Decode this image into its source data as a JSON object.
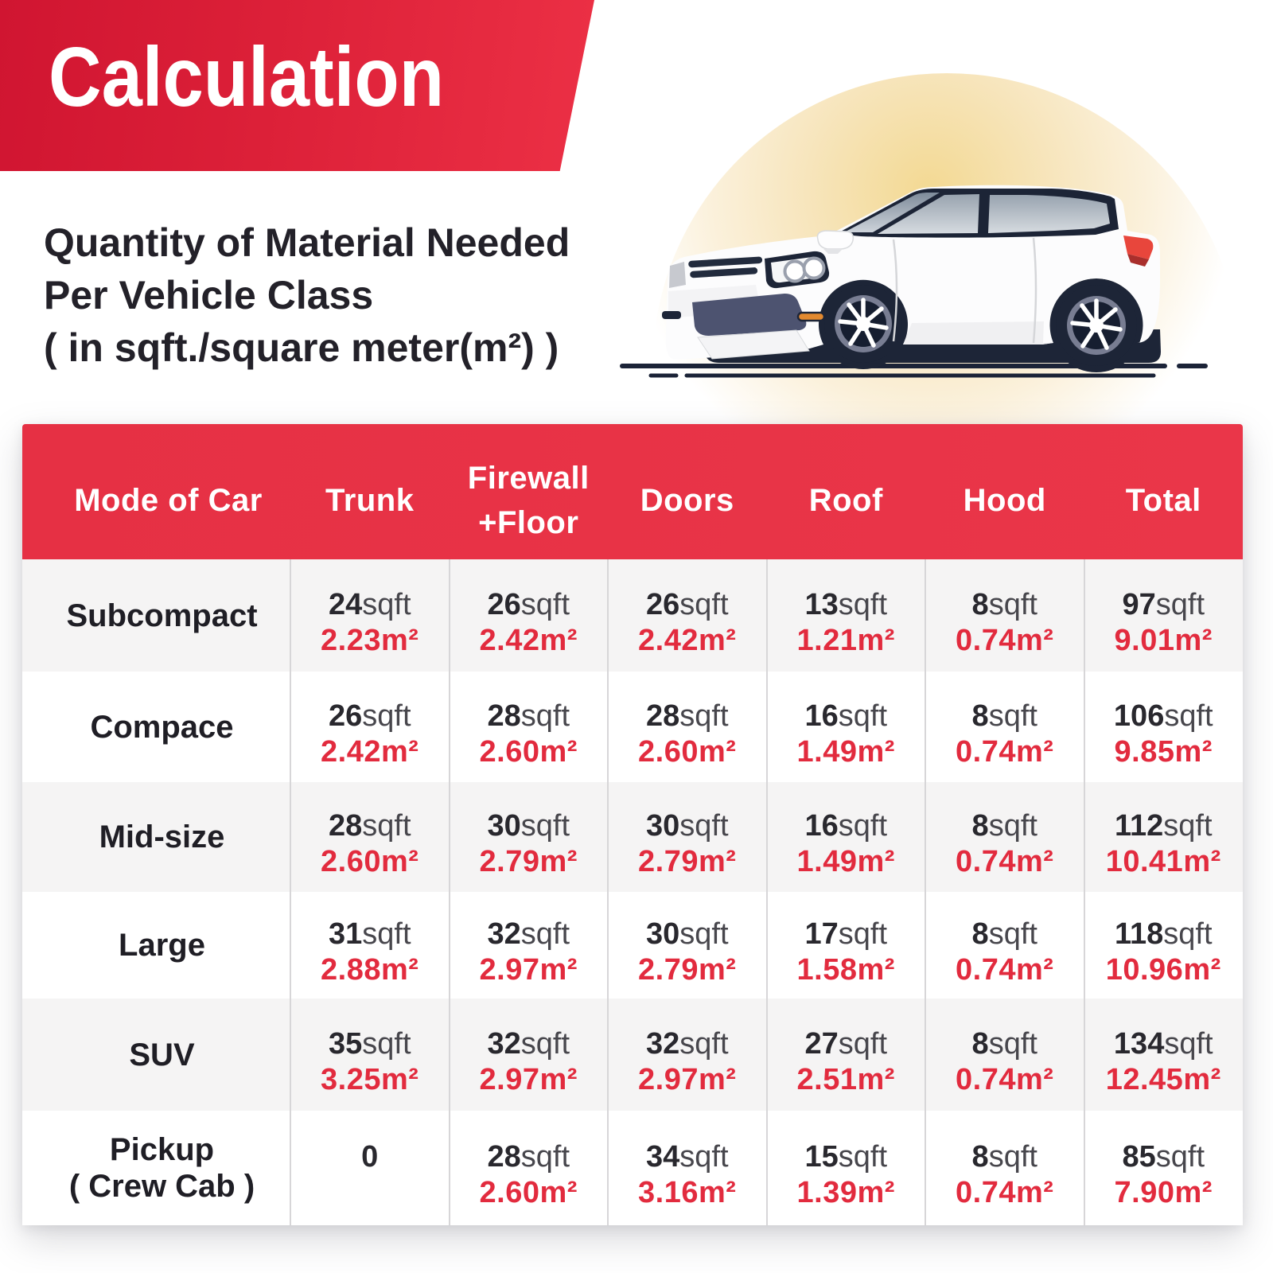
{
  "header": {
    "title": "Calculation",
    "subtitle_lines": [
      "Quantity of Material Needed",
      "Per Vehicle Class",
      "( in sqft./square meter(m²) )"
    ]
  },
  "colors": {
    "banner_red_left": "#d01531",
    "banner_red_right": "#ec3045",
    "table_header_red": "#e93548",
    "value_red": "#e22b3e",
    "row_alt_gray": "#f5f4f4",
    "text_dark": "#232129",
    "ground_navy": "#1b2337",
    "sun_yellow": "#f6dfa6"
  },
  "illustration": {
    "name": "white-hatchback-car-side-view",
    "background": "sun-circle"
  },
  "table": {
    "columns": [
      "Mode of Car",
      "Trunk",
      "Firewall\n+Floor",
      "Doors",
      "Roof",
      "Hood",
      "Total"
    ],
    "unit_sqft": "sqft",
    "unit_m2": "m²",
    "rows": [
      {
        "label": "Subcompact",
        "cells": [
          {
            "sqft": "24",
            "m2": "2.23"
          },
          {
            "sqft": "26",
            "m2": "2.42"
          },
          {
            "sqft": "26",
            "m2": "2.42"
          },
          {
            "sqft": "13",
            "m2": "1.21"
          },
          {
            "sqft": "8",
            "m2": "0.74"
          },
          {
            "sqft": "97",
            "m2": "9.01"
          }
        ]
      },
      {
        "label": "Compace",
        "cells": [
          {
            "sqft": "26",
            "m2": "2.42"
          },
          {
            "sqft": "28",
            "m2": "2.60"
          },
          {
            "sqft": "28",
            "m2": "2.60"
          },
          {
            "sqft": "16",
            "m2": "1.49"
          },
          {
            "sqft": "8",
            "m2": "0.74"
          },
          {
            "sqft": "106",
            "m2": "9.85"
          }
        ]
      },
      {
        "label": "Mid-size",
        "cells": [
          {
            "sqft": "28",
            "m2": "2.60"
          },
          {
            "sqft": "30",
            "m2": "2.79"
          },
          {
            "sqft": "30",
            "m2": "2.79"
          },
          {
            "sqft": "16",
            "m2": "1.49"
          },
          {
            "sqft": "8",
            "m2": "0.74"
          },
          {
            "sqft": "112",
            "m2": "10.41"
          }
        ]
      },
      {
        "label": "Large",
        "cells": [
          {
            "sqft": "31",
            "m2": "2.88"
          },
          {
            "sqft": "32",
            "m2": "2.97"
          },
          {
            "sqft": "30",
            "m2": "2.79"
          },
          {
            "sqft": "17",
            "m2": "1.58"
          },
          {
            "sqft": "8",
            "m2": "0.74"
          },
          {
            "sqft": "118",
            "m2": "10.96"
          }
        ]
      },
      {
        "label": "SUV",
        "cells": [
          {
            "sqft": "35",
            "m2": "3.25"
          },
          {
            "sqft": "32",
            "m2": "2.97"
          },
          {
            "sqft": "32",
            "m2": "2.97"
          },
          {
            "sqft": "27",
            "m2": "2.51"
          },
          {
            "sqft": "8",
            "m2": "0.74"
          },
          {
            "sqft": "134",
            "m2": "12.45"
          }
        ]
      },
      {
        "label": "Pickup\n( Crew Cab )",
        "cells": [
          {
            "plain": "0"
          },
          {
            "sqft": "28",
            "m2": "2.60"
          },
          {
            "sqft": "34",
            "m2": "3.16"
          },
          {
            "sqft": "15",
            "m2": "1.39"
          },
          {
            "sqft": "8",
            "m2": "0.74"
          },
          {
            "sqft": "85",
            "m2": "7.90"
          }
        ]
      }
    ]
  }
}
